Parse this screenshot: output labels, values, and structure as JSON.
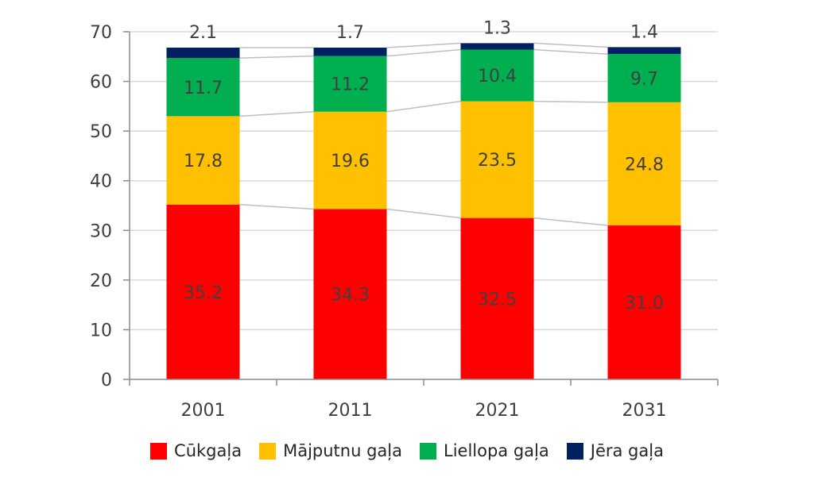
{
  "chart_data": {
    "type": "bar",
    "stacked": true,
    "title": "",
    "xlabel": "",
    "ylabel": "",
    "categories": [
      "2001",
      "2011",
      "2021",
      "2031"
    ],
    "ylim": [
      0,
      70
    ],
    "yticks": [
      0,
      10,
      20,
      30,
      40,
      50,
      60,
      70
    ],
    "grid": true,
    "legend_position": "bottom",
    "series": [
      {
        "name": "Cūkgaļa",
        "color": "#ff0000",
        "values": [
          35.2,
          34.3,
          32.5,
          31.0
        ],
        "labels": [
          "35.2",
          "34.3",
          "32.5",
          "31.0"
        ]
      },
      {
        "name": "Mājputnu gaļa",
        "color": "#ffc000",
        "values": [
          17.8,
          19.6,
          23.5,
          24.8
        ],
        "labels": [
          "17.8",
          "19.6",
          "23.5",
          "24.8"
        ]
      },
      {
        "name": "Liellopa gaļa",
        "color": "#00b050",
        "values": [
          11.7,
          11.2,
          10.4,
          9.7
        ],
        "labels": [
          "11.7",
          "11.2",
          "10.4",
          "9.7"
        ]
      },
      {
        "name": "Jēra gaļa",
        "color": "#002060",
        "values": [
          2.1,
          1.7,
          1.3,
          1.4
        ],
        "labels": [
          "2.1",
          "1.7",
          "1.3",
          "1.4"
        ]
      }
    ]
  }
}
